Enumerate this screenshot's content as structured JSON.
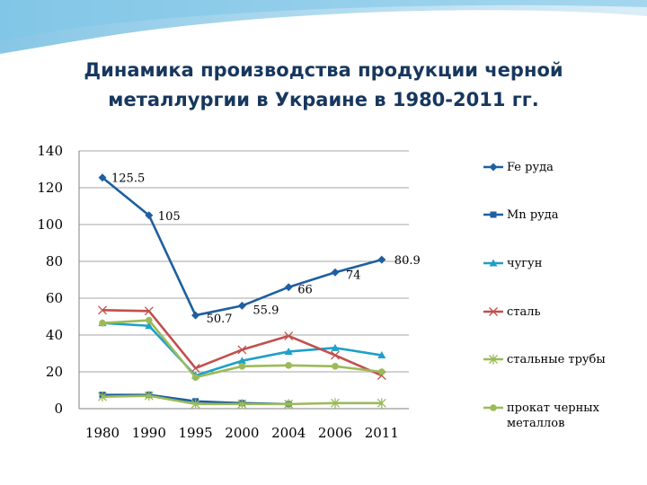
{
  "title_line1": "Динамика производства продукции черной",
  "title_line2": "металлургии в Украине в 1980-2011 гг.",
  "chart_data": {
    "type": "line",
    "title": "Динамика производства продукции черной металлургии в Украине в 1980-2011 гг.",
    "xlabel": "",
    "ylabel": "",
    "ylim": [
      0,
      140
    ],
    "yticks": [
      "0",
      "20",
      "40",
      "60",
      "80",
      "100",
      "120",
      "140"
    ],
    "categories": [
      "1980",
      "1990",
      "1995",
      "2000",
      "2004",
      "2006",
      "2011"
    ],
    "gridlines": true,
    "legend_position": "right",
    "series": [
      {
        "name": "Fe руда",
        "color": "#1f5f9f",
        "marker": "diamond",
        "values": [
          125.5,
          105,
          50.7,
          55.9,
          66,
          74,
          80.9
        ],
        "labels": [
          "125.5",
          "105",
          "50.7",
          "55.9",
          "66",
          "74",
          "80.9"
        ]
      },
      {
        "name": "Mn руда",
        "color": "#1f5f9f",
        "marker": "square",
        "values": [
          7.5,
          7.5,
          4,
          3,
          2.5,
          null,
          null
        ]
      },
      {
        "name": "чугун",
        "color": "#1fa0c8",
        "marker": "triangle",
        "values": [
          46.5,
          45,
          18,
          26,
          31,
          33,
          29
        ]
      },
      {
        "name": "сталь",
        "color": "#c0504d",
        "marker": "x",
        "values": [
          53.5,
          53,
          22,
          32,
          39.5,
          29,
          18
        ]
      },
      {
        "name": "стальные трубы",
        "color": "#9bbb59",
        "marker": "star",
        "values": [
          6.5,
          7,
          2.5,
          2.5,
          2.5,
          3,
          3
        ]
      },
      {
        "name": "прокат черных металлов",
        "color": "#9bbb59",
        "marker": "circle",
        "values": [
          46.5,
          48,
          17,
          23,
          23.5,
          23,
          20
        ]
      }
    ]
  }
}
